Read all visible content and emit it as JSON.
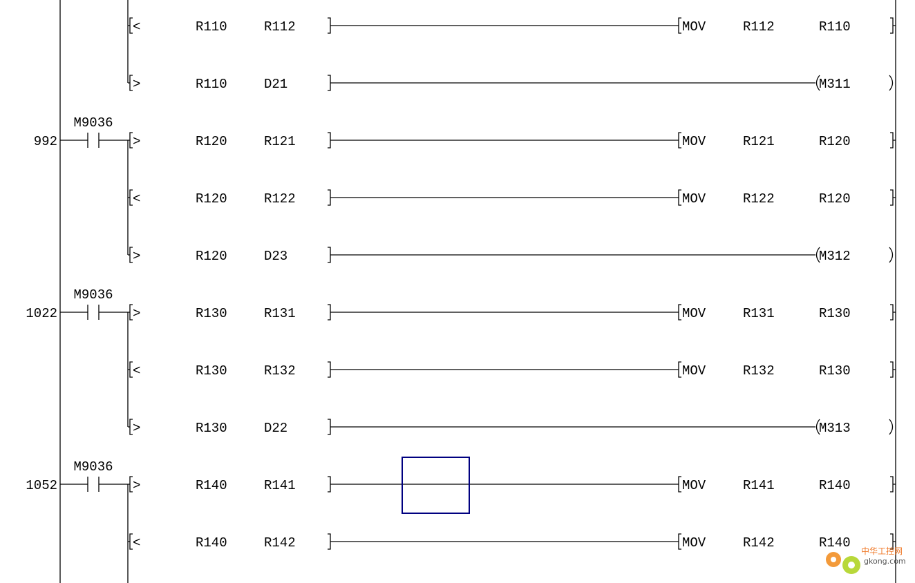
{
  "diagram": {
    "type": "ladder",
    "cursor_color": "#000080",
    "rows": [
      {
        "cmp": "<",
        "a": "R110",
        "b": "R112",
        "out": {
          "type": "mov",
          "op": "MOV",
          "src": "R112",
          "dst": "R110"
        }
      },
      {
        "cmp": ">",
        "a": "R110",
        "b": "D21",
        "out": {
          "type": "coil",
          "name": "M311"
        }
      },
      {
        "step": "992",
        "contact": "M9036",
        "cmp": ">",
        "a": "R120",
        "b": "R121",
        "out": {
          "type": "mov",
          "op": "MOV",
          "src": "R121",
          "dst": "R120"
        }
      },
      {
        "cmp": "<",
        "a": "R120",
        "b": "R122",
        "out": {
          "type": "mov",
          "op": "MOV",
          "src": "R122",
          "dst": "R120"
        }
      },
      {
        "cmp": ">",
        "a": "R120",
        "b": "D23",
        "out": {
          "type": "coil",
          "name": "M312"
        }
      },
      {
        "step": "1022",
        "contact": "M9036",
        "cmp": ">",
        "a": "R130",
        "b": "R131",
        "out": {
          "type": "mov",
          "op": "MOV",
          "src": "R131",
          "dst": "R130"
        }
      },
      {
        "cmp": "<",
        "a": "R130",
        "b": "R132",
        "out": {
          "type": "mov",
          "op": "MOV",
          "src": "R132",
          "dst": "R130"
        }
      },
      {
        "cmp": ">",
        "a": "R130",
        "b": "D22",
        "out": {
          "type": "coil",
          "name": "M313"
        }
      },
      {
        "step": "1052",
        "contact": "M9036",
        "cmp": ">",
        "a": "R140",
        "b": "R141",
        "out": {
          "type": "mov",
          "op": "MOV",
          "src": "R141",
          "dst": "R140"
        },
        "cursor": true
      },
      {
        "cmp": "<",
        "a": "R140",
        "b": "R142",
        "out": {
          "type": "mov",
          "op": "MOV",
          "src": "R142",
          "dst": "R140"
        }
      }
    ]
  },
  "watermark": {
    "cn": "中华工控网",
    "site": "gkong.com"
  }
}
